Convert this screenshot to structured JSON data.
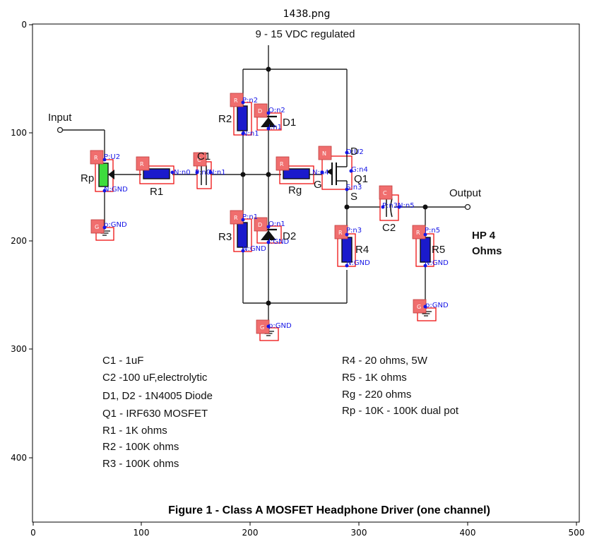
{
  "window": {
    "title": "1438.png"
  },
  "axes": {
    "x_ticks": [
      "0",
      "100",
      "200",
      "300",
      "400",
      "500"
    ],
    "y_ticks": [
      "0",
      "100",
      "200",
      "300",
      "400"
    ]
  },
  "circuit": {
    "supply_label": "9 - 15 VDC regulated",
    "input_label": "Input",
    "output_label": "Output",
    "load_label_1": "HP 4",
    "load_label_2": "Ohms",
    "component_labels": {
      "rp": "Rp",
      "r1": "R1",
      "c1": "C1",
      "r2": "R2",
      "d1": "D1",
      "r3": "R3",
      "d2": "D2",
      "rg": "Rg",
      "g": "G",
      "d": "D",
      "q1": "Q1",
      "s": "S",
      "c2": "C2",
      "r4": "R4",
      "r5": "R5"
    }
  },
  "annotations": {
    "type_tags": {
      "rp": "R",
      "r1": "R",
      "c1": "C",
      "r2": "R",
      "d1": "D",
      "r3": "R",
      "d2": "D",
      "rg": "R",
      "q1": "N",
      "c2": "C",
      "r4": "R",
      "r5": "R",
      "g1": "G",
      "g2": "G",
      "g3": "G"
    },
    "pins": {
      "rp_p": "P:U2",
      "rp_n": "N:GND",
      "g1": "p:GND",
      "r1_n": "N:n0",
      "c1_p": "P:n0",
      "c1_n": "N:n1",
      "r2_p": "P:n2",
      "r2_n": "N:n1",
      "d1_o": "O:n2",
      "d1_i": "I:n1",
      "r3_p": "P:n1",
      "r3_n": "N:GND",
      "d2_o": "O:n1",
      "d2_i": "I:GND",
      "rg_n": "N:n4",
      "q1_d": "D:U2",
      "q1_g": "G:n4",
      "q1_s": "S:n3",
      "c2_p": "P:n3",
      "c2_n": "N:n5",
      "r4_p": "P:n3",
      "r4_n": "N:GND",
      "r5_p": "P:n5",
      "r5_n": "N:GND",
      "g2": "p:GND",
      "g3": "p:GND"
    }
  },
  "legend": {
    "c1": "C1  -  1uF",
    "c2": "C2  -100 uF,electrolytic",
    "d": "D1, D2  -  1N4005 Diode",
    "q1": "Q1  -  IRF630 MOSFET",
    "r1": "R1  -  1K ohms",
    "r2": "R2  -  100K ohms",
    "r3": "R3  -  100K ohms",
    "r4": "R4  - 20 ohms, 5W",
    "r5": "R5  -  1K ohms",
    "rg": "Rg  -  220 ohms",
    "rp": "Rp  -  10K - 100K dual pot"
  },
  "caption": "Figure 1 - Class A MOSFET Headphone Driver (one channel)",
  "colors": {
    "component_fill": "#1a1acc",
    "pot_fill": "#3ddc3d",
    "tag_fill": "#f06e6e",
    "box_stroke": "#ee1111",
    "pin_text": "#1515e6"
  }
}
